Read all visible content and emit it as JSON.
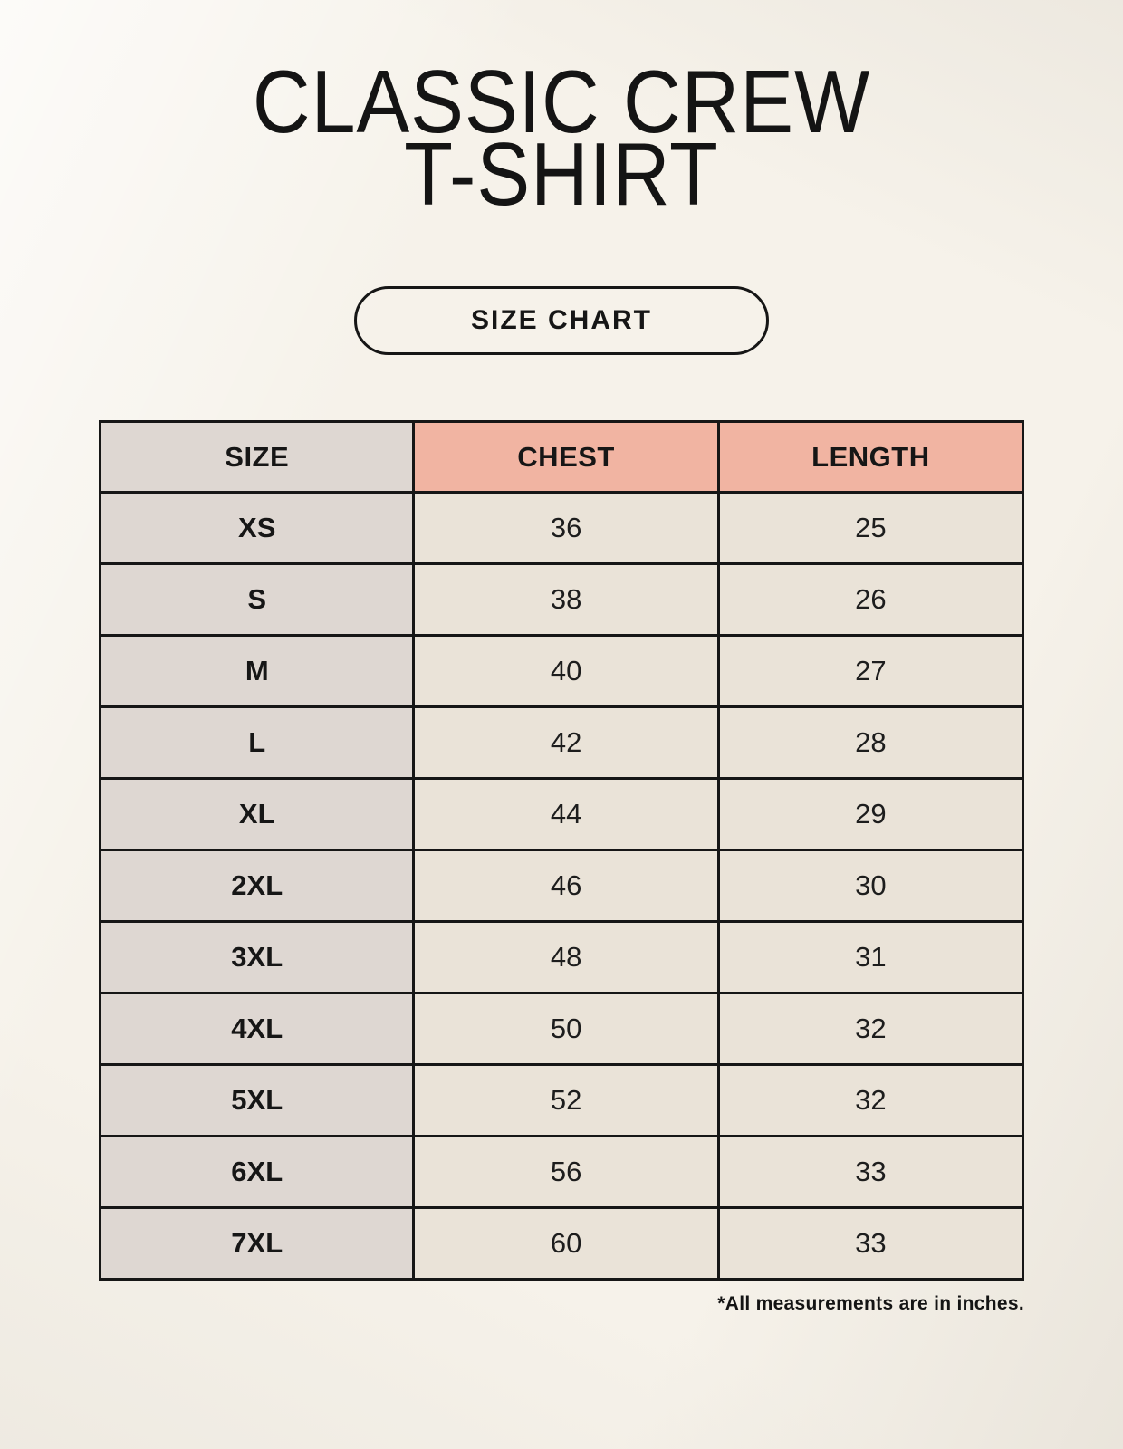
{
  "header": {
    "title_line1": "CLASSIC CREW",
    "title_line2": "T-SHIRT",
    "badge_label": "SIZE CHART"
  },
  "footnote": "*All measurements are in inches.",
  "colors": {
    "page_bg": "#f6f2ea",
    "label_cell_bg": "#ded7d2",
    "accent_header_bg": "#f1b4a2",
    "data_cell_bg": "#eae3d8",
    "border": "#161616",
    "text": "#141414"
  },
  "chart_data": {
    "type": "table",
    "columns": [
      "SIZE",
      "CHEST",
      "LENGTH"
    ],
    "rows": [
      [
        "XS",
        "36",
        "25"
      ],
      [
        "S",
        "38",
        "26"
      ],
      [
        "M",
        "40",
        "27"
      ],
      [
        "L",
        "42",
        "28"
      ],
      [
        "XL",
        "44",
        "29"
      ],
      [
        "2XL",
        "46",
        "30"
      ],
      [
        "3XL",
        "48",
        "31"
      ],
      [
        "4XL",
        "50",
        "32"
      ],
      [
        "5XL",
        "52",
        "32"
      ],
      [
        "6XL",
        "56",
        "33"
      ],
      [
        "7XL",
        "60",
        "33"
      ]
    ],
    "units": "inches"
  }
}
